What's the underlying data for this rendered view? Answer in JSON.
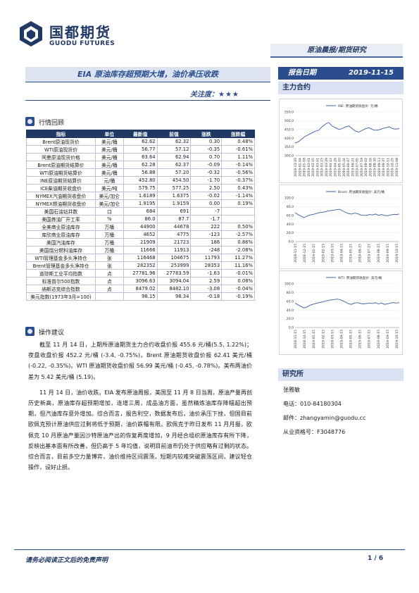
{
  "header": {
    "logo_cn": "国都期货",
    "logo_en": "GUODU FUTURES",
    "report_type": "原油晨报/期货研究",
    "title": "EIA 原油库存超预期大增，油价承压收跌",
    "date_label": "报告日期",
    "date": "2019-11-15",
    "attention_label": "关注度：",
    "attention_stars": "★★★"
  },
  "market_review": {
    "title": "行情回顾",
    "columns": [
      "指标",
      "单位",
      "最新值",
      "前值",
      "涨跌",
      "涨跌幅"
    ],
    "rows": [
      [
        "Brent原油现货价",
        "美元/桶",
        "62.62",
        "62.32",
        "0.30",
        "0.48%"
      ],
      [
        "WTI原油现货价",
        "美元/桶",
        "56.77",
        "57.12",
        "-0.35",
        "-0.61%"
      ],
      [
        "阿曼原油现货价格",
        "美元/桶",
        "63.64",
        "62.94",
        "0.70",
        "1.11%"
      ],
      [
        "Brent原油期货结算价",
        "美元/桶",
        "62.28",
        "62.37",
        "-0.09",
        "-0.14%"
      ],
      [
        "WTI原油期货结算价",
        "美元/桶",
        "56.88",
        "57.20",
        "-0.32",
        "-0.56%"
      ],
      [
        "INE原油期货结算价",
        "元/桶",
        "452.80",
        "454.50",
        "-1.70",
        "-0.37%"
      ],
      [
        "ICE柴油期货收盘价",
        "美元/吨",
        "579.75",
        "577.25",
        "2.50",
        "0.43%"
      ],
      [
        "NYMEX汽油期货收盘价",
        "美元/加仑",
        "1.6189",
        "1.6375",
        "-0.02",
        "-1.14%"
      ],
      [
        "NYMEX燃油期货收盘价",
        "美元/加仑",
        "1.9195",
        "1.9159",
        "0.00",
        "0.19%"
      ],
      [
        "美国石油钻井数",
        "口",
        "684",
        "691",
        "-7",
        ""
      ],
      [
        "美国炼油厂开工率",
        "%",
        "86.0",
        "87.7",
        "-1.7",
        ""
      ],
      [
        "全美商业原油库存",
        "万桶",
        "44900",
        "44678",
        "222",
        "0.50%"
      ],
      [
        "库欣商业原油库存",
        "万桶",
        "4652",
        "4775",
        "-123",
        "-2.57%"
      ],
      [
        "美国汽油库存",
        "万桶",
        "21909",
        "21723",
        "186",
        "0.86%"
      ],
      [
        "美国馏分燃料油库存",
        "万桶",
        "11666",
        "11913",
        "-248",
        "-2.08%"
      ],
      [
        "WTI管理基金多头净持仓",
        "张",
        "116468",
        "104675",
        "11793",
        "11.27%"
      ],
      [
        "Brent管理基金多头净持仓",
        "张",
        "282352",
        "253999",
        "28353",
        "11.16%"
      ],
      [
        "道琼斯工业平均指数",
        "点",
        "27781.96",
        "27783.59",
        "-1.63",
        "-0.01%"
      ],
      [
        "标准普尔500指数",
        "点",
        "3096.63",
        "3094.04",
        "2.59",
        "0.08%"
      ],
      [
        "纳斯达克综合指数",
        "点",
        "8479.02",
        "8482.10",
        "-3.08",
        "-0.04%"
      ],
      [
        "美元指数(1973年3月=100)",
        "",
        "98.15",
        "98.34",
        "-0.18",
        "-0.19%"
      ]
    ]
  },
  "operation": {
    "title": "操作建议",
    "paragraphs": [
      "截至 11 月 14 日，上期所原油期货主力合约收盘价报 455.6 元/桶(5.5, 1.22%)；夜盘收盘价报 452.2 元/桶 (-3.4, -0.75%)。Brent 原油期货收盘价报 62.41 美元/桶 (-0.22, -0.35%)。WTI 原油期货收盘价报 56.99 美元/桶 (-0.45, -0.78%)。美布两油价差为 5.42 美元/桶 (5.19)。",
      "11 月 14 日，油价收跌。EIA 发布原油周报，美国至 11 月 8 日当周，原油产量再创历史新高，原油库存超预期增加，连增三周，成品油方面，虽然精炼油库存降幅超出预期，但汽油库存意外增加。综合而言，报告利空，数据发布后，油价承压下挫，但国目前欧佩克预计原油供应过剩将低于预期，油价跌幅有限。欧佩克于昨日发布 11 月月报，欧佩克 10 月原油产量因沙特原油产出的恢复再度增加，9 月经合组织原油库存有所下降，反映出基本面有所改善，但仍高于 5 年均值，说明目前油市仍处于供应略有过剩的状态。综合而言，目前多空力量博弈，油价维持区间震荡，短期内较难突破震荡区间，建议轻仓操作，设好止损。"
    ]
  },
  "main_contract": {
    "title": "主力合约",
    "charts": [
      {
        "legend": "INE: 原油期货收盘价: 元/桶",
        "yticks": [
          "550.0",
          "500.0",
          "450.0",
          "400.0",
          "350.0",
          "300.0"
        ],
        "xticks": [
          "2018-12-20",
          "2019-01-04",
          "2019-01-18",
          "2019-02-01",
          "2019-02-15",
          "2019-03-01",
          "2019-03-15",
          "2019-03-29",
          "2019-04-12",
          "2019-04-26",
          "2019-05-10",
          "2019-05-24",
          "2019-06-07",
          "2019-06-21",
          "2019-07-05",
          "2019-07-19",
          "2019-08-02",
          "2019-08-16",
          "2019-08-30",
          "2019-09-13",
          "2019-09-27",
          "2019-10-11",
          "2019-10-25",
          "2019-11-08"
        ]
      },
      {
        "legend": "Brent: 原油期货收盘价: 美元/桶",
        "yticks": [
          "100.0",
          "80.0",
          "60.0",
          "40.0",
          "20.0",
          "0.0"
        ],
        "xticks": [
          "2018-11-15",
          "2018-12-15",
          "2019-01-15",
          "2019-02-15",
          "2019-03-15",
          "2019-04-15",
          "2019-05-15",
          "2019-06-15",
          "2019-07-15",
          "2019-08-15",
          "2019-09-15",
          "2019-10-15"
        ]
      },
      {
        "legend": "WTI: 原油期货收盘价: 美元/桶",
        "yticks": [
          "100.0",
          "80.0",
          "60.0",
          "40.0",
          "20.0",
          "0.0"
        ],
        "xticks": [
          "2018-11-15",
          "2018-12-15",
          "2019-01-15",
          "2019-02-15",
          "2019-03-15",
          "2019-04-15",
          "2019-05-15",
          "2019-06-15",
          "2019-07-15",
          "2019-08-15",
          "2019-09-15",
          "2019-10-15"
        ]
      }
    ]
  },
  "chart_data": [
    {
      "type": "line",
      "series": [
        {
          "name": "INE: 原油期货收盘价: 元/桶",
          "values": [
            372,
            380,
            395,
            410,
            420,
            430,
            440,
            445,
            465,
            480,
            490,
            470,
            460,
            450,
            455,
            465,
            470,
            455,
            440,
            435,
            445,
            455,
            460,
            450,
            445,
            448,
            455,
            460,
            465,
            455,
            452,
            455
          ]
        }
      ],
      "ylim": [
        300,
        550
      ]
    },
    {
      "type": "line",
      "series": [
        {
          "name": "Brent: 原油期货收盘价: 美元/桶",
          "values": [
            66,
            62,
            58,
            55,
            58,
            61,
            62,
            64,
            66,
            67,
            68,
            70,
            71,
            72,
            73,
            74,
            70,
            67,
            64,
            63,
            65,
            64,
            61,
            60,
            60,
            62,
            61,
            63,
            60,
            62,
            60,
            59,
            61,
            62,
            62,
            63
          ]
        }
      ],
      "ylim": [
        0,
        100
      ]
    },
    {
      "type": "line",
      "series": [
        {
          "name": "WTI: 原油期货收盘价: 美元/桶",
          "values": [
            56,
            52,
            48,
            45,
            47,
            51,
            53,
            55,
            57,
            58,
            60,
            62,
            63,
            64,
            65,
            64,
            61,
            58,
            54,
            53,
            56,
            57,
            55,
            54,
            55,
            56,
            55,
            57,
            54,
            56,
            53,
            54,
            56,
            57,
            56,
            57
          ]
        }
      ],
      "ylim": [
        0,
        100
      ]
    }
  ],
  "research": {
    "title": "研究所",
    "name": "张雅敏",
    "phone": "电话：010-84180304",
    "email": "邮件：zhangyamin@guodu.cc",
    "license": "从业资格号：F3048776"
  },
  "footer": {
    "disclaimer": "请务必阅读正文后的免责声明",
    "page": "1 / 6"
  },
  "colors": {
    "brand": "#1f3864",
    "accent": "#2a4d8f",
    "line": "#3a5fa0"
  }
}
